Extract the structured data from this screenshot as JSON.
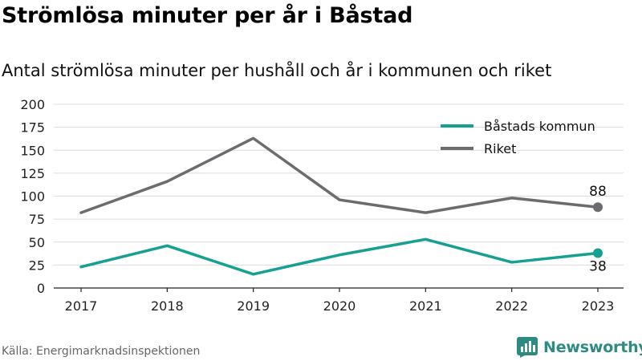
{
  "title": "Strömlösa minuter per år i Båstad",
  "subtitle": "Antal strömlösa minuter per hushåll och år i kommunen och riket",
  "source": "Källa: Energimarknadsinspektionen",
  "brand": {
    "name": "Newsworthy",
    "icon": "newsworthy-logo-icon",
    "color": "#2e8b82"
  },
  "chart_data": {
    "type": "line",
    "x": [
      "2017",
      "2018",
      "2019",
      "2020",
      "2021",
      "2022",
      "2023"
    ],
    "ylim": [
      0,
      200
    ],
    "yticks": [
      0,
      25,
      50,
      75,
      100,
      125,
      150,
      175,
      200
    ],
    "grid": true,
    "legend_position": "top-right",
    "series": [
      {
        "name": "Båstads kommun",
        "color": "#16a091",
        "values": [
          23,
          46,
          15,
          36,
          53,
          28,
          38
        ],
        "end_label": "38"
      },
      {
        "name": "Riket",
        "color": "#6c6c70",
        "values": [
          82,
          116,
          163,
          96,
          82,
          98,
          88
        ],
        "end_label": "88"
      }
    ]
  }
}
